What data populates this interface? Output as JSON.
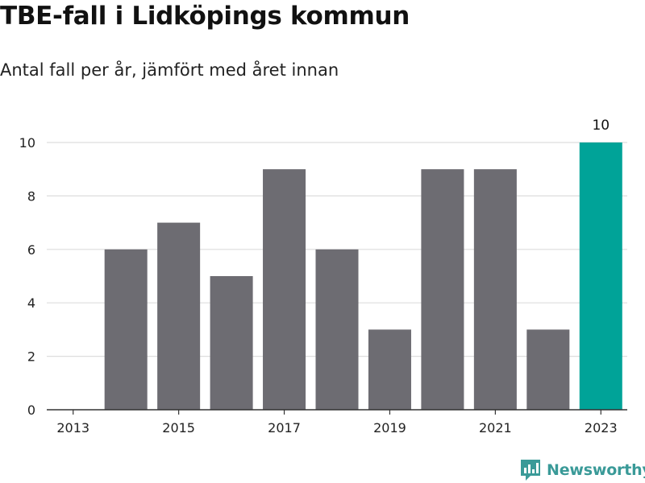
{
  "title": "TBE-fall i Lidköpings kommun",
  "subtitle": "Antal fall per år, jämfört med året innan",
  "brand": {
    "name": "Newsworthy",
    "icon": "newsworthy-logo-icon"
  },
  "colors": {
    "bar": "#6d6c72",
    "highlight": "#00a398",
    "grid": "#dddddd",
    "axis": "#333333",
    "brand": "#3a9a98"
  },
  "chart_data": {
    "type": "bar",
    "title": "TBE-fall i Lidköpings kommun",
    "subtitle": "Antal fall per år, jämfört med året innan",
    "categories": [
      "2013",
      "2014",
      "2015",
      "2016",
      "2017",
      "2018",
      "2019",
      "2020",
      "2021",
      "2022",
      "2023"
    ],
    "values": [
      0,
      6,
      7,
      5,
      9,
      6,
      3,
      9,
      9,
      3,
      10
    ],
    "x_tick_labels": [
      "2013",
      "2015",
      "2017",
      "2019",
      "2021",
      "2023"
    ],
    "y_ticks": [
      0,
      2,
      4,
      6,
      8,
      10
    ],
    "ylim": [
      0,
      10
    ],
    "highlight_category": "2023",
    "data_labels": [
      {
        "category": "2023",
        "text": "10"
      }
    ],
    "xlabel": "",
    "ylabel": "",
    "grid": true,
    "legend": "none"
  }
}
